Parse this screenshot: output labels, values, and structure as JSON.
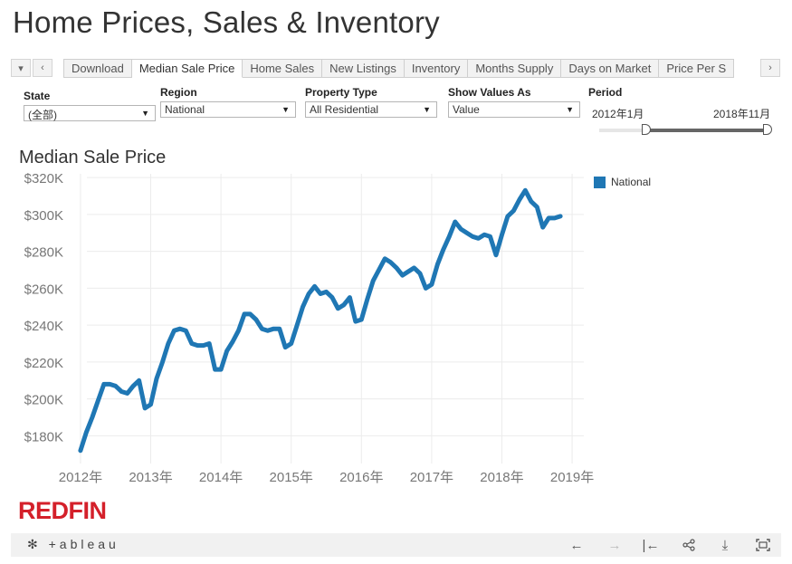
{
  "page": {
    "title": "Home Prices, Sales & Inventory"
  },
  "tabs": [
    "Download",
    "Median Sale Price",
    "Home Sales",
    "New Listings",
    "Inventory",
    "Months Supply",
    "Days on Market",
    "Price Per S"
  ],
  "active_tab": 1,
  "nav": {
    "first_icon": "▾",
    "prev_icon": "‹",
    "next_icon": "›"
  },
  "filters": {
    "state": {
      "label": "State",
      "value": "(全部)"
    },
    "region": {
      "label": "Region",
      "value": "National"
    },
    "property_type": {
      "label": "Property Type",
      "value": "All Residential"
    },
    "show_values_as": {
      "label": "Show Values As",
      "value": "Value"
    },
    "period": {
      "label": "Period",
      "start": "2012年1月",
      "end": "2018年11月",
      "start_fraction": 0.0,
      "end_fraction": 1.0
    }
  },
  "chart_data": {
    "type": "line",
    "title": "Median Sale Price",
    "xlabel": "",
    "ylabel": "",
    "x_ticks": [
      "2012年",
      "2013年",
      "2014年",
      "2015年",
      "2016年",
      "2017年",
      "2018年",
      "2019年"
    ],
    "y_ticks": [
      "$180K",
      "$200K",
      "$220K",
      "$240K",
      "$260K",
      "$280K",
      "$300K",
      "$320K"
    ],
    "ylim": [
      165,
      322
    ],
    "xlim": [
      "2011-11",
      "2019-03"
    ],
    "grid": true,
    "legend_position": "right",
    "series": [
      {
        "name": "National",
        "color": "#1f77b4",
        "x": [
          "2012-01",
          "2012-02",
          "2012-03",
          "2012-04",
          "2012-05",
          "2012-06",
          "2012-07",
          "2012-08",
          "2012-09",
          "2012-10",
          "2012-11",
          "2012-12",
          "2013-01",
          "2013-02",
          "2013-03",
          "2013-04",
          "2013-05",
          "2013-06",
          "2013-07",
          "2013-08",
          "2013-09",
          "2013-10",
          "2013-11",
          "2013-12",
          "2014-01",
          "2014-02",
          "2014-03",
          "2014-04",
          "2014-05",
          "2014-06",
          "2014-07",
          "2014-08",
          "2014-09",
          "2014-10",
          "2014-11",
          "2014-12",
          "2015-01",
          "2015-02",
          "2015-03",
          "2015-04",
          "2015-05",
          "2015-06",
          "2015-07",
          "2015-08",
          "2015-09",
          "2015-10",
          "2015-11",
          "2015-12",
          "2016-01",
          "2016-02",
          "2016-03",
          "2016-04",
          "2016-05",
          "2016-06",
          "2016-07",
          "2016-08",
          "2016-09",
          "2016-10",
          "2016-11",
          "2016-12",
          "2017-01",
          "2017-02",
          "2017-03",
          "2017-04",
          "2017-05",
          "2017-06",
          "2017-07",
          "2017-08",
          "2017-09",
          "2017-10",
          "2017-11",
          "2017-12",
          "2018-01",
          "2018-02",
          "2018-03",
          "2018-04",
          "2018-05",
          "2018-06",
          "2018-07",
          "2018-08",
          "2018-09",
          "2018-10",
          "2018-11"
        ],
        "values": [
          172,
          182,
          190,
          199,
          208,
          208,
          207,
          204,
          203,
          207,
          210,
          195,
          197,
          211,
          220,
          230,
          237,
          238,
          237,
          230,
          229,
          229,
          230,
          216,
          216,
          226,
          231,
          237,
          246,
          246,
          243,
          238,
          237,
          238,
          238,
          228,
          230,
          240,
          250,
          257,
          261,
          257,
          258,
          255,
          249,
          251,
          255,
          242,
          243,
          254,
          264,
          270,
          276,
          274,
          271,
          267,
          269,
          271,
          268,
          260,
          262,
          273,
          281,
          288,
          296,
          292,
          290,
          288,
          287,
          289,
          288,
          278,
          289,
          299,
          302,
          308,
          313,
          307,
          304,
          293,
          298,
          298,
          299
        ]
      }
    ]
  },
  "branding": {
    "logo": "REDFIN",
    "tableau": "+ableau"
  },
  "footer": {
    "back_icon": "←",
    "forward_icon": "→",
    "reset_icon": "|←",
    "share_icon": "share",
    "download_icon": "⤓",
    "fullscreen_icon": "⛶"
  }
}
